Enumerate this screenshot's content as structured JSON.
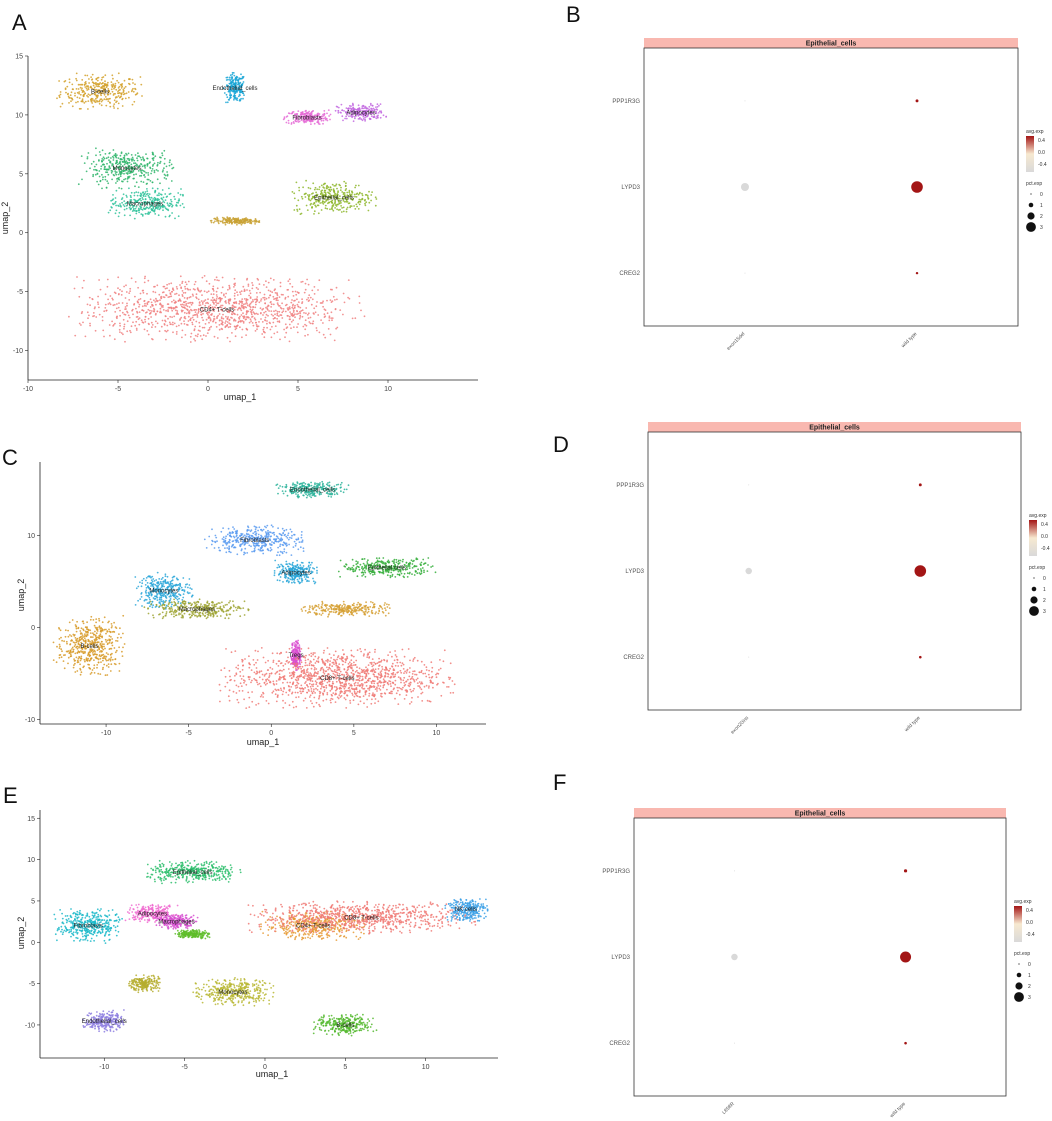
{
  "panel_letters": [
    "A",
    "B",
    "C",
    "D",
    "E",
    "F"
  ],
  "chart_data": [
    {
      "panel": "A",
      "type": "scatter",
      "xlabel": "umap_1",
      "ylabel": "umap_2",
      "xlim": [
        -10,
        15
      ],
      "ylim": [
        -12.5,
        15
      ],
      "xticks": [
        -10,
        -5,
        0,
        5,
        10
      ],
      "yticks": [
        -10,
        -5,
        0,
        5,
        10,
        15
      ],
      "grid": false,
      "clusters": [
        {
          "name": "B-cells",
          "label": "B-cells",
          "color": "#d4a12a",
          "center": [
            -6,
            12
          ],
          "spread": [
            2.2,
            1.4
          ]
        },
        {
          "name": "Endothelial_cells",
          "label": "Endothelial_cells",
          "color": "#1aa6d6",
          "center": [
            1.5,
            12.3
          ],
          "spread": [
            0.6,
            1.2
          ]
        },
        {
          "name": "Fibroblasts",
          "label": "Fibroblasts",
          "color": "#e56bd6",
          "center": [
            5.5,
            9.8
          ],
          "spread": [
            1.2,
            0.6
          ]
        },
        {
          "name": "Adipocytes",
          "label": "Adipocytes",
          "color": "#c36be0",
          "center": [
            8.5,
            10.2
          ],
          "spread": [
            1.3,
            0.7
          ]
        },
        {
          "name": "Monocytes",
          "label": "Monocytes",
          "color": "#2fb56b",
          "center": [
            -4.5,
            5.5
          ],
          "spread": [
            2.5,
            1.6
          ]
        },
        {
          "name": "Macrophages",
          "label": "Macrophages",
          "color": "#2ec29a",
          "center": [
            -3.5,
            2.5
          ],
          "spread": [
            2.0,
            1.2
          ]
        },
        {
          "name": "Epithelial_cells",
          "label": "Epithelial_cells",
          "color": "#8db62a",
          "center": [
            7,
            3
          ],
          "spread": [
            2.2,
            1.3
          ]
        },
        {
          "name": "small-cluster",
          "label": "",
          "color": "#c9a235",
          "center": [
            1.5,
            1
          ],
          "spread": [
            1.3,
            0.3
          ]
        },
        {
          "name": "CD4+ T-cells",
          "label": "CD4+ T-cells",
          "color": "#f08080",
          "center": [
            0.5,
            -6.5
          ],
          "spread": [
            7.5,
            2.6
          ]
        }
      ]
    },
    {
      "panel": "B",
      "type": "dotplot",
      "facet_title": "Epithelial_cells",
      "genes": [
        "PPP1R3G",
        "LYPD3",
        "CREG2"
      ],
      "categories": [
        "exon15del",
        "wild type"
      ],
      "points": [
        {
          "gene": "PPP1R3G",
          "category": "exon15del",
          "avg_exp": -0.4,
          "pct_exp": 0
        },
        {
          "gene": "PPP1R3G",
          "category": "wild type",
          "avg_exp": 0.4,
          "pct_exp": 0.3
        },
        {
          "gene": "LYPD3",
          "category": "exon15del",
          "avg_exp": -0.4,
          "pct_exp": 2.0
        },
        {
          "gene": "LYPD3",
          "category": "wild type",
          "avg_exp": 0.4,
          "pct_exp": 3.2
        },
        {
          "gene": "CREG2",
          "category": "exon15del",
          "avg_exp": -0.4,
          "pct_exp": 0
        },
        {
          "gene": "CREG2",
          "category": "wild type",
          "avg_exp": 0.4,
          "pct_exp": 0.15
        }
      ],
      "legend": {
        "color_title": "avg.exp",
        "color_ticks": [
          "0.4",
          "0.0",
          "-0.4"
        ],
        "size_title": "pct.exp",
        "size_ticks": [
          "0",
          "1",
          "2",
          "3"
        ]
      },
      "colors": {
        "high": "#a31515",
        "mid": "#f7e9d0",
        "low": "#d9d9d9",
        "strip": "#f9b8b0"
      }
    },
    {
      "panel": "C",
      "type": "scatter",
      "xlabel": "umap_1",
      "ylabel": "umap_2",
      "xlim": [
        -14,
        13
      ],
      "ylim": [
        -10.5,
        18
      ],
      "xticks": [
        -10,
        -5,
        0,
        5,
        10
      ],
      "yticks": [
        -10,
        0,
        10
      ],
      "grid": false,
      "clusters": [
        {
          "name": "Endothelial_cells",
          "label": "Endothelial_cells",
          "color": "#2ab39a",
          "center": [
            2.5,
            15
          ],
          "spread": [
            2.0,
            0.8
          ]
        },
        {
          "name": "Fibroblasts",
          "label": "Fibroblasts",
          "color": "#5b9bf0",
          "center": [
            -1,
            9.5
          ],
          "spread": [
            2.8,
            1.5
          ]
        },
        {
          "name": "Adipocytes",
          "label": "Adipocytes",
          "color": "#29a6d8",
          "center": [
            1.5,
            6
          ],
          "spread": [
            1.2,
            1.2
          ]
        },
        {
          "name": "Epithelial cells",
          "label": "Epithelial cells",
          "color": "#35ae3b",
          "center": [
            7,
            6.5
          ],
          "spread": [
            2.7,
            1.0
          ]
        },
        {
          "name": "Monocytes",
          "label": "Monocytes",
          "color": "#2ba7d9",
          "center": [
            -6.5,
            4
          ],
          "spread": [
            1.6,
            1.8
          ]
        },
        {
          "name": "Macrophages",
          "label": "Macrophages",
          "color": "#9fa534",
          "center": [
            -4.5,
            2
          ],
          "spread": [
            3.0,
            1.0
          ]
        },
        {
          "name": "orange-cluster",
          "label": "",
          "color": "#d6a034",
          "center": [
            4.5,
            2
          ],
          "spread": [
            2.5,
            0.8
          ]
        },
        {
          "name": "B-cells",
          "label": "B-cells",
          "color": "#d79a28",
          "center": [
            -11,
            -2
          ],
          "spread": [
            2.0,
            3.0
          ]
        },
        {
          "name": "Tregs",
          "label": "Tregs",
          "color": "#d94fd0",
          "center": [
            1.5,
            -3
          ],
          "spread": [
            0.3,
            1.5
          ]
        },
        {
          "name": "CD8+ T-cells",
          "label": "CD8+ T-cells",
          "color": "#f07a75",
          "center": [
            4,
            -5.5
          ],
          "spread": [
            6.5,
            3.0
          ]
        }
      ]
    },
    {
      "panel": "D",
      "type": "dotplot",
      "facet_title": "Epithelial_cells",
      "genes": [
        "PPP1R3G",
        "LYPD3",
        "CREG2"
      ],
      "categories": [
        "exon20ins",
        "wild type"
      ],
      "points": [
        {
          "gene": "PPP1R3G",
          "category": "exon20ins",
          "avg_exp": -0.4,
          "pct_exp": 0
        },
        {
          "gene": "PPP1R3G",
          "category": "wild type",
          "avg_exp": 0.4,
          "pct_exp": 0.3
        },
        {
          "gene": "LYPD3",
          "category": "exon20ins",
          "avg_exp": -0.4,
          "pct_exp": 1.5
        },
        {
          "gene": "LYPD3",
          "category": "wild type",
          "avg_exp": 0.4,
          "pct_exp": 3.2
        },
        {
          "gene": "CREG2",
          "category": "exon20ins",
          "avg_exp": -0.4,
          "pct_exp": 0
        },
        {
          "gene": "CREG2",
          "category": "wild type",
          "avg_exp": 0.4,
          "pct_exp": 0.2
        }
      ],
      "legend": {
        "color_title": "avg.exp",
        "color_ticks": [
          "0.4",
          "0.0",
          "-0.4"
        ],
        "size_title": "pct.exp",
        "size_ticks": [
          "0",
          "1",
          "2",
          "3"
        ]
      },
      "colors": {
        "high": "#a31515",
        "mid": "#f7e9d0",
        "low": "#d9d9d9",
        "strip": "#f9b8b0"
      }
    },
    {
      "panel": "E",
      "type": "scatter",
      "xlabel": "umap_1",
      "ylabel": "umap_2",
      "xlim": [
        -14,
        14.5
      ],
      "ylim": [
        -14,
        16
      ],
      "xticks": [
        -10,
        -5,
        0,
        5,
        10
      ],
      "yticks": [
        -10,
        -5,
        0,
        5,
        10,
        15
      ],
      "grid": false,
      "clusters": [
        {
          "name": "Epithelial_cells",
          "label": "Epithelial_cells",
          "color": "#2dbe6c",
          "center": [
            -4.5,
            8.5
          ],
          "spread": [
            2.8,
            1.3
          ]
        },
        {
          "name": "Adipocytes",
          "label": "Adipocytes",
          "color": "#f06bd0",
          "center": [
            -7,
            3.5
          ],
          "spread": [
            1.6,
            1.0
          ]
        },
        {
          "name": "Fibroblasts",
          "label": "Fibroblasts",
          "color": "#1bb8c9",
          "center": [
            -11,
            2
          ],
          "spread": [
            2.0,
            2.0
          ]
        },
        {
          "name": "Macrophages",
          "label": "Macrophages",
          "color": "#d64fd0",
          "center": [
            -5.5,
            2.5
          ],
          "spread": [
            1.2,
            0.8
          ]
        },
        {
          "name": "green-small",
          "label": "",
          "color": "#5fbd2a",
          "center": [
            -4.5,
            1
          ],
          "spread": [
            1.0,
            0.5
          ]
        },
        {
          "name": "CD4+ T-cells",
          "label": "CD4+ T-cells",
          "color": "#e69a35",
          "center": [
            3,
            2
          ],
          "spread": [
            3.0,
            1.6
          ]
        },
        {
          "name": "CD8+ T-cells",
          "label": "CD8+ T-cells",
          "color": "#f07a75",
          "center": [
            6,
            3
          ],
          "spread": [
            6.5,
            1.8
          ]
        },
        {
          "name": "NK cells",
          "label": "NK cells",
          "color": "#3ba0e6",
          "center": [
            12.5,
            4
          ],
          "spread": [
            1.3,
            1.4
          ]
        },
        {
          "name": "olive-small",
          "label": "",
          "color": "#b5ad2e",
          "center": [
            -7.5,
            -5
          ],
          "spread": [
            0.9,
            1.0
          ]
        },
        {
          "name": "Monocytes",
          "label": "Monocytes",
          "color": "#b8b734",
          "center": [
            -2,
            -6
          ],
          "spread": [
            2.5,
            1.6
          ]
        },
        {
          "name": "Endothelial_cells",
          "label": "Endothelial_cells",
          "color": "#8d7ee0",
          "center": [
            -10,
            -9.5
          ],
          "spread": [
            1.2,
            1.2
          ]
        },
        {
          "name": "B-cells",
          "label": "B-cells",
          "color": "#54b82e",
          "center": [
            5,
            -10
          ],
          "spread": [
            1.8,
            1.2
          ]
        }
      ]
    },
    {
      "panel": "F",
      "type": "dotplot",
      "facet_title": "Epithelial_cells",
      "genes": [
        "PPP1R3G",
        "LYPD3",
        "CREG2"
      ],
      "categories": [
        "L858R",
        "wild type"
      ],
      "points": [
        {
          "gene": "PPP1R3G",
          "category": "L858R",
          "avg_exp": -0.4,
          "pct_exp": 0
        },
        {
          "gene": "PPP1R3G",
          "category": "wild type",
          "avg_exp": 0.4,
          "pct_exp": 0.4
        },
        {
          "gene": "LYPD3",
          "category": "L858R",
          "avg_exp": -0.4,
          "pct_exp": 1.5
        },
        {
          "gene": "LYPD3",
          "category": "wild type",
          "avg_exp": 0.4,
          "pct_exp": 3.0
        },
        {
          "gene": "CREG2",
          "category": "L858R",
          "avg_exp": -0.4,
          "pct_exp": 0
        },
        {
          "gene": "CREG2",
          "category": "wild type",
          "avg_exp": 0.4,
          "pct_exp": 0.2
        }
      ],
      "legend": {
        "color_title": "avg.exp",
        "color_ticks": [
          "0.4",
          "0.0",
          "-0.4"
        ],
        "size_title": "pct.exp",
        "size_ticks": [
          "0",
          "1",
          "2",
          "3"
        ]
      },
      "colors": {
        "high": "#a31515",
        "mid": "#f7e9d0",
        "low": "#d9d9d9",
        "strip": "#f9b8b0"
      }
    }
  ]
}
